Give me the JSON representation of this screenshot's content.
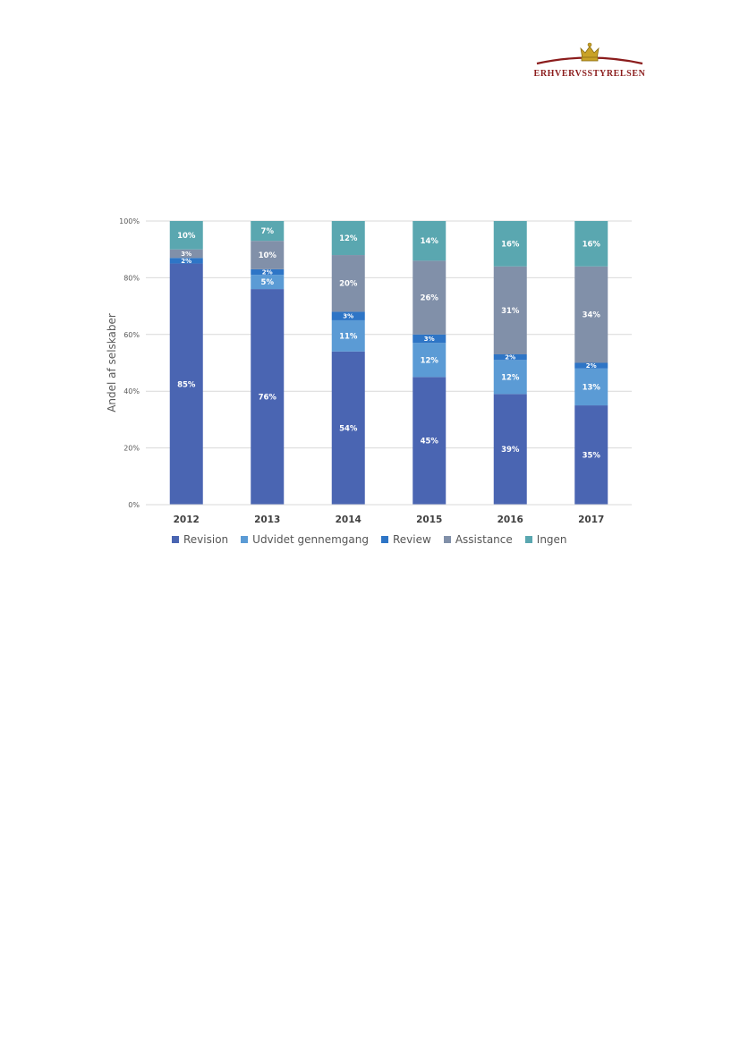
{
  "header": {
    "logo_text": "ERHVERVSSTYRELSEN",
    "logo_color": "#8b1c1c",
    "crown_color": "#c9a227"
  },
  "chart_data": {
    "type": "bar",
    "stacked": true,
    "categories": [
      "2012",
      "2013",
      "2014",
      "2015",
      "2016",
      "2017"
    ],
    "ylabel": "Andel af selskaber",
    "xlabel": "",
    "ylim": [
      0,
      100
    ],
    "yticks": [
      "0%",
      "20%",
      "40%",
      "60%",
      "80%",
      "100%"
    ],
    "grid": true,
    "legend_position": "bottom",
    "series": [
      {
        "name": "Revision",
        "color": "#4a65b2",
        "values": [
          85,
          76,
          54,
          45,
          39,
          35
        ],
        "labels": [
          "85%",
          "76%",
          "54%",
          "45%",
          "39%",
          "35%"
        ]
      },
      {
        "name": "Udvidet gennemgang",
        "color": "#5b9bd5",
        "values": [
          0,
          5,
          11,
          12,
          12,
          13
        ],
        "labels": [
          "",
          "5%",
          "11%",
          "12%",
          "12%",
          "13%"
        ]
      },
      {
        "name": "Review",
        "color": "#2e75c6",
        "values": [
          2,
          2,
          3,
          3,
          2,
          2
        ],
        "labels": [
          "2%",
          "2%",
          "3%",
          "3%",
          "2%",
          "2%"
        ]
      },
      {
        "name": "Assistance",
        "color": "#8190a9",
        "values": [
          3,
          10,
          20,
          26,
          31,
          34
        ],
        "labels": [
          "3%",
          "10%",
          "20%",
          "26%",
          "31%",
          "34%"
        ]
      },
      {
        "name": "Ingen",
        "color": "#5aa7b0",
        "values": [
          10,
          7,
          12,
          14,
          16,
          16
        ],
        "labels": [
          "10%",
          "7%",
          "12%",
          "14%",
          "16%",
          "16%"
        ]
      }
    ]
  }
}
